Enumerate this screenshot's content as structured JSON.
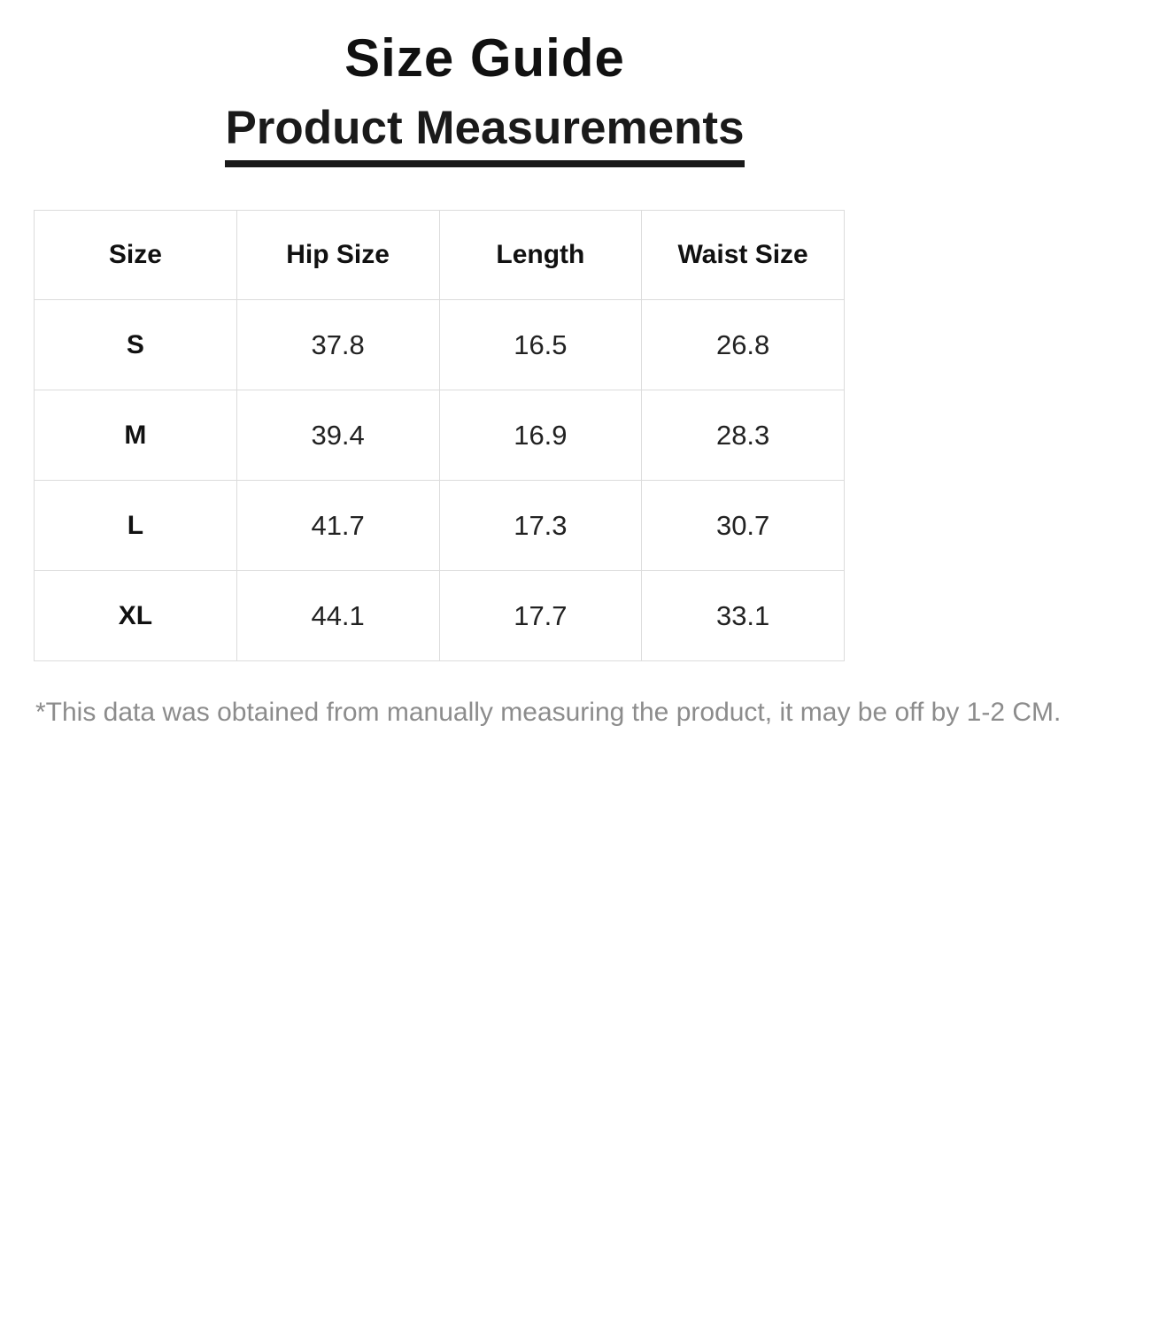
{
  "page": {
    "title": "Size Guide",
    "subtitle": "Product Measurements",
    "footnote": "*This data was obtained from manually measuring the product, it may be off by 1-2 CM."
  },
  "table": {
    "headers": [
      "Size",
      "Hip Size",
      "Length",
      "Waist Size"
    ],
    "rows": [
      {
        "size": "S",
        "hip": "37.8",
        "length": "16.5",
        "waist": "26.8"
      },
      {
        "size": "M",
        "hip": "39.4",
        "length": "16.9",
        "waist": "28.3"
      },
      {
        "size": "L",
        "hip": "41.7",
        "length": "17.3",
        "waist": "30.7"
      },
      {
        "size": "XL",
        "hip": "44.1",
        "length": "17.7",
        "waist": "33.1"
      }
    ]
  },
  "colors": {
    "heading_text": "#111111",
    "underline": "#1a1a1a",
    "table_border": "#dcdcdc",
    "cell_text": "#222222",
    "footnote_text": "#8c8c8c",
    "background": "#ffffff"
  }
}
